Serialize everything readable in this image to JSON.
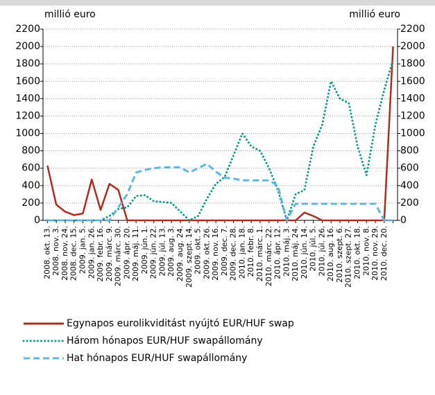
{
  "chart_data": {
    "type": "line",
    "y_label": "millió euro",
    "y2_label": "millió euro",
    "categories": [
      "2008. okt. 13.",
      "2008. nov. 3.",
      "2008. nov. 24.",
      "2008. dec. 15.",
      "2009. jan. 5.",
      "2009. jan. 26.",
      "2009. febr. 16.",
      "2009. márc. 9.",
      "2009. márc. 30.",
      "2009. ápr. 20.",
      "2009. máj. 11.",
      "2009. jún. 1.",
      "2009. jún. 22.",
      "2009. júl. 13.",
      "2009. aug. 3.",
      "2009. aug. 24.",
      "2009. szept. 14.",
      "2009. okt. 5.",
      "2009. okt. 26.",
      "2009. nov. 16.",
      "2009. dec. 7.",
      "2009. dec. 28.",
      "2010. jan. 18.",
      "2010. febr. 8.",
      "2010. márc. 1.",
      "2010. márc. 22.",
      "2010. ápr. 12.",
      "2010. máj. 3.",
      "2010. máj. 24.",
      "2010. jún. 14.",
      "2010. júl. 5.",
      "2010. júl. 26.",
      "2010. aug. 16.",
      "2010. szept. 6.",
      "2010. szept. 27.",
      "2010. okt. 18.",
      "2010. nov. 8.",
      "2010. nov. 29.",
      "2010. dec. 20.",
      null
    ],
    "series": [
      {
        "name": "Egynapos eurolikviditást nyújtó EUR/HUF swap",
        "color": "#b22a1b",
        "style": "solid",
        "values": [
          630,
          180,
          100,
          60,
          80,
          470,
          120,
          420,
          350,
          0,
          0,
          0,
          0,
          0,
          0,
          0,
          0,
          0,
          0,
          0,
          0,
          0,
          0,
          0,
          0,
          0,
          0,
          0,
          0,
          90,
          50,
          0,
          0,
          0,
          0,
          0,
          0,
          0,
          0,
          2000
        ]
      },
      {
        "name": "Három hónapos EUR/HUF swapállomány",
        "color": "#0f9a8c",
        "style": "dotted",
        "values": [
          0,
          0,
          0,
          0,
          0,
          0,
          0,
          50,
          130,
          150,
          280,
          290,
          220,
          210,
          200,
          100,
          0,
          50,
          250,
          420,
          500,
          750,
          1000,
          850,
          800,
          600,
          350,
          0,
          300,
          350,
          850,
          1100,
          1600,
          1400,
          1350,
          850,
          520,
          1100,
          1500,
          1850
        ]
      },
      {
        "name": "Hat hónapos EUR/HUF swapállomány",
        "color": "#5bb8e6",
        "style": "dashed",
        "values": [
          0,
          0,
          0,
          0,
          0,
          0,
          0,
          0,
          150,
          300,
          550,
          580,
          600,
          610,
          610,
          610,
          550,
          600,
          650,
          560,
          490,
          480,
          460,
          460,
          460,
          460,
          400,
          0,
          190,
          190,
          190,
          190,
          190,
          190,
          190,
          190,
          190,
          190,
          0,
          0
        ]
      }
    ],
    "ylim": [
      0,
      2200
    ],
    "yticks": [
      0,
      200,
      400,
      600,
      800,
      1000,
      1200,
      1400,
      1600,
      1800,
      2000,
      2200
    ],
    "y2lim": [
      0,
      2200
    ],
    "y2ticks": [
      0,
      200,
      400,
      600,
      800,
      1000,
      1200,
      1400,
      1600,
      1800,
      2000,
      2200
    ],
    "grid": true
  }
}
